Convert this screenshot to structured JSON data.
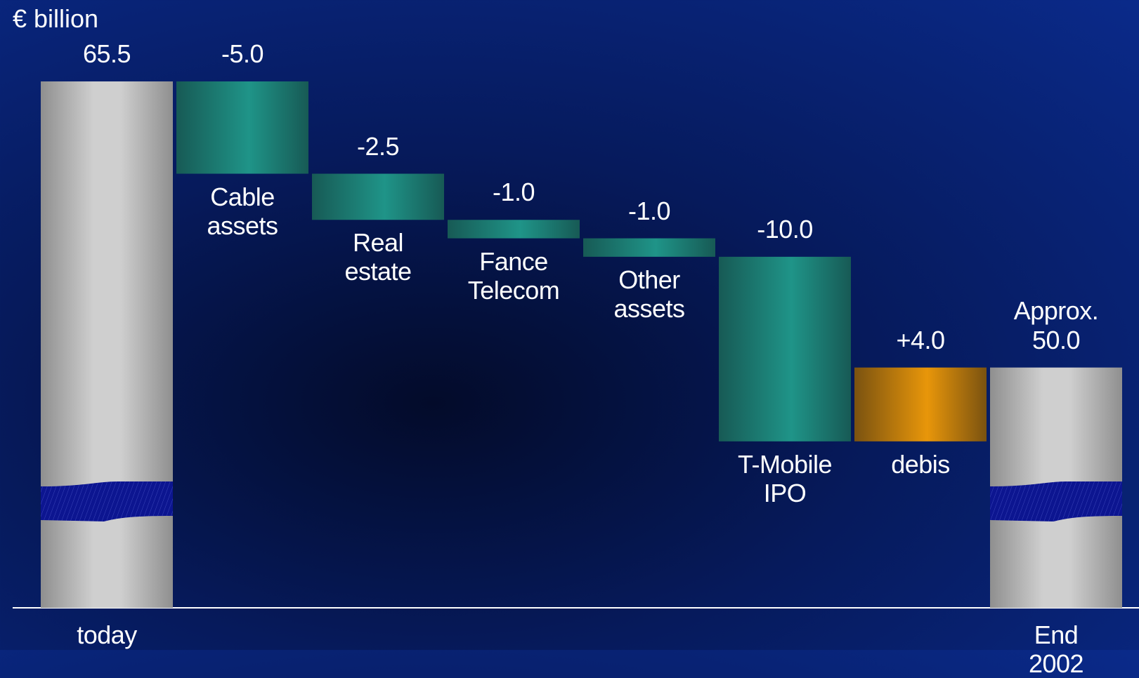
{
  "chart_data": {
    "type": "waterfall",
    "unit_label": "€ billion",
    "categories": [
      "today",
      "Cable assets",
      "Real estate",
      "Fance Telecom",
      "Other assets",
      "T-Mobile IPO",
      "debis",
      "End 2002"
    ],
    "values": [
      65.5,
      -5.0,
      -2.5,
      -1.0,
      -1.0,
      -10.0,
      4.0,
      50.0
    ],
    "value_labels": [
      "65.5",
      "-5.0",
      "-2.5",
      "-1.0",
      "-1.0",
      "-10.0",
      "+4.0",
      "50.0"
    ],
    "annotation": "Approx.",
    "colors": {
      "total": "#cfcfcf",
      "decrease": "#1f9488",
      "increase": "#e8960a"
    }
  }
}
